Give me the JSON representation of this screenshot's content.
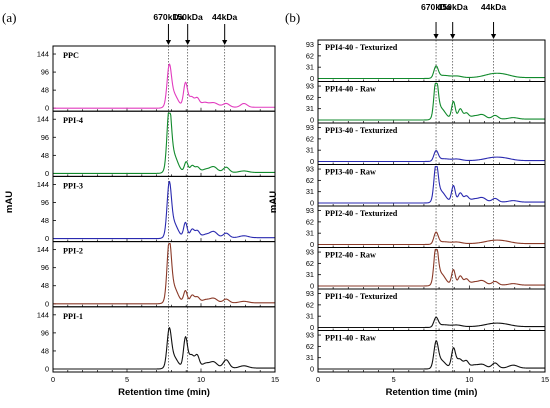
{
  "chart_data": [
    {
      "type": "line",
      "label": "(a)",
      "xlabel": "Retention time (min)",
      "ylabel": "mAU",
      "xlim": [
        0,
        15
      ],
      "xticks": [
        0,
        5,
        10,
        15
      ],
      "markers": [
        {
          "label": "670kDa",
          "x": 7.8
        },
        {
          "label": "150kDa",
          "x": 9.1
        },
        {
          "label": "44kDa",
          "x": 11.6
        }
      ],
      "panels": [
        {
          "name": "PPC",
          "color": "#e23cbf",
          "yticks": [
            0,
            48,
            96,
            144
          ],
          "ylim": [
            0,
            160
          ],
          "peaks": [
            [
              7.85,
              88,
              0.14
            ],
            [
              8.1,
              38,
              0.3
            ],
            [
              8.95,
              62,
              0.13
            ],
            [
              9.35,
              28,
              0.2
            ],
            [
              9.75,
              20,
              0.14
            ],
            [
              10.2,
              12,
              0.25
            ],
            [
              10.85,
              12,
              0.3
            ],
            [
              11.7,
              10,
              0.22
            ],
            [
              12.9,
              10,
              0.22
            ]
          ]
        },
        {
          "name": "PPI-4",
          "color": "#118a2c",
          "yticks": [
            0,
            48,
            96,
            144
          ],
          "ylim": [
            0,
            160
          ],
          "peaks": [
            [
              7.85,
              145,
              0.14
            ],
            [
              8.1,
              50,
              0.3
            ],
            [
              9.0,
              28,
              0.12
            ],
            [
              9.4,
              18,
              0.14
            ],
            [
              9.75,
              14,
              0.15
            ],
            [
              10.3,
              8,
              0.25
            ],
            [
              10.85,
              15,
              0.25
            ],
            [
              11.7,
              14,
              0.2
            ],
            [
              12.9,
              4,
              0.3
            ]
          ]
        },
        {
          "name": "PPI-3",
          "color": "#2a2ab0",
          "yticks": [
            0,
            48,
            96,
            144
          ],
          "ylim": [
            0,
            160
          ],
          "peaks": [
            [
              7.85,
              120,
              0.14
            ],
            [
              8.1,
              42,
              0.3
            ],
            [
              8.95,
              40,
              0.12
            ],
            [
              9.4,
              22,
              0.14
            ],
            [
              9.75,
              18,
              0.15
            ],
            [
              10.3,
              8,
              0.25
            ],
            [
              10.85,
              16,
              0.25
            ],
            [
              11.7,
              12,
              0.2
            ],
            [
              12.9,
              5,
              0.3
            ]
          ]
        },
        {
          "name": "PPI-2",
          "color": "#8a3a28",
          "yticks": [
            0,
            48,
            96,
            144
          ],
          "ylim": [
            0,
            160
          ],
          "peaks": [
            [
              7.85,
              138,
              0.14
            ],
            [
              8.1,
              45,
              0.3
            ],
            [
              8.95,
              32,
              0.12
            ],
            [
              9.4,
              20,
              0.14
            ],
            [
              9.75,
              15,
              0.15
            ],
            [
              10.3,
              8,
              0.25
            ],
            [
              10.85,
              12,
              0.25
            ],
            [
              11.7,
              10,
              0.2
            ],
            [
              12.9,
              4,
              0.3
            ]
          ]
        },
        {
          "name": "PPI-1",
          "color": "#111111",
          "yticks": [
            0,
            48,
            96,
            144
          ],
          "ylim": [
            0,
            160
          ],
          "peaks": [
            [
              7.85,
              85,
              0.14
            ],
            [
              8.1,
              32,
              0.3
            ],
            [
              8.95,
              78,
              0.13
            ],
            [
              9.35,
              35,
              0.2
            ],
            [
              9.75,
              30,
              0.14
            ],
            [
              10.3,
              12,
              0.25
            ],
            [
              10.85,
              16,
              0.25
            ],
            [
              11.7,
              22,
              0.2
            ],
            [
              12.9,
              6,
              0.3
            ]
          ]
        }
      ]
    },
    {
      "type": "line",
      "label": "(b)",
      "xlabel": "Retention time (min)",
      "ylabel": "mAU",
      "xlim": [
        0,
        15
      ],
      "xticks": [
        0,
        5,
        10,
        15
      ],
      "markers": [
        {
          "label": "670kDa",
          "x": 7.8
        },
        {
          "label": "150kDa",
          "x": 8.9
        },
        {
          "label": "44kDa",
          "x": 11.6
        }
      ],
      "panels": [
        {
          "name": "PPI4-40 - Texturized",
          "color": "#118a2c",
          "yticks": [
            0,
            31,
            62,
            93
          ],
          "ylim": [
            0,
            100
          ],
          "peaks": [
            [
              7.8,
              30,
              0.14
            ],
            [
              8.3,
              6,
              0.4
            ],
            [
              9.2,
              4,
              0.3
            ],
            [
              11.6,
              10,
              0.6
            ],
            [
              12.4,
              5,
              0.5
            ]
          ]
        },
        {
          "name": "PPI4-40 - Raw",
          "color": "#118a2c",
          "yticks": [
            0,
            31,
            62,
            93
          ],
          "ylim": [
            0,
            100
          ],
          "peaks": [
            [
              7.8,
              98,
              0.13
            ],
            [
              8.1,
              30,
              0.3
            ],
            [
              8.95,
              48,
              0.12
            ],
            [
              9.4,
              28,
              0.14
            ],
            [
              9.8,
              16,
              0.15
            ],
            [
              10.3,
              8,
              0.25
            ],
            [
              10.85,
              12,
              0.25
            ],
            [
              11.7,
              10,
              0.2
            ],
            [
              12.9,
              4,
              0.3
            ]
          ]
        },
        {
          "name": "PPI3-40 - Texturized",
          "color": "#2a2ab0",
          "yticks": [
            0,
            31,
            62,
            93
          ],
          "ylim": [
            0,
            100
          ],
          "peaks": [
            [
              7.8,
              26,
              0.14
            ],
            [
              8.3,
              5,
              0.4
            ],
            [
              9.2,
              4,
              0.3
            ],
            [
              11.6,
              8,
              0.6
            ],
            [
              12.4,
              4,
              0.5
            ]
          ]
        },
        {
          "name": "PPI3-40 - Raw",
          "color": "#2a2ab0",
          "yticks": [
            0,
            31,
            62,
            93
          ],
          "ylim": [
            0,
            100
          ],
          "peaks": [
            [
              7.8,
              92,
              0.13
            ],
            [
              8.1,
              30,
              0.3
            ],
            [
              8.95,
              45,
              0.12
            ],
            [
              9.4,
              25,
              0.14
            ],
            [
              9.8,
              16,
              0.15
            ],
            [
              10.3,
              8,
              0.25
            ],
            [
              10.85,
              12,
              0.25
            ],
            [
              11.7,
              10,
              0.2
            ],
            [
              12.9,
              4,
              0.3
            ]
          ]
        },
        {
          "name": "PPI2-40 - Texturized",
          "color": "#8a3a28",
          "yticks": [
            0,
            31,
            62,
            93
          ],
          "ylim": [
            0,
            100
          ],
          "peaks": [
            [
              7.8,
              30,
              0.14
            ],
            [
              8.3,
              5,
              0.4
            ],
            [
              9.2,
              4,
              0.3
            ],
            [
              11.6,
              8,
              0.6
            ],
            [
              12.4,
              4,
              0.5
            ]
          ]
        },
        {
          "name": "PPI2-40 - Raw",
          "color": "#8a3a28",
          "yticks": [
            0,
            31,
            62,
            93
          ],
          "ylim": [
            0,
            100
          ],
          "peaks": [
            [
              7.8,
              96,
              0.13
            ],
            [
              8.1,
              32,
              0.3
            ],
            [
              8.95,
              42,
              0.12
            ],
            [
              9.4,
              25,
              0.14
            ],
            [
              9.8,
              16,
              0.15
            ],
            [
              10.3,
              8,
              0.25
            ],
            [
              10.85,
              12,
              0.25
            ],
            [
              11.7,
              10,
              0.2
            ],
            [
              12.9,
              4,
              0.3
            ]
          ]
        },
        {
          "name": "PPI1-40 - Texturized",
          "color": "#111111",
          "yticks": [
            0,
            31,
            62,
            93
          ],
          "ylim": [
            0,
            100
          ],
          "peaks": [
            [
              7.8,
              24,
              0.14
            ],
            [
              8.3,
              5,
              0.4
            ],
            [
              9.2,
              4,
              0.3
            ],
            [
              11.6,
              8,
              0.6
            ],
            [
              12.4,
              4,
              0.5
            ]
          ]
        },
        {
          "name": "PPI1-40 - Raw",
          "color": "#111111",
          "yticks": [
            0,
            31,
            62,
            93
          ],
          "ylim": [
            0,
            100
          ],
          "peaks": [
            [
              7.8,
              62,
              0.14
            ],
            [
              8.1,
              22,
              0.3
            ],
            [
              8.95,
              52,
              0.13
            ],
            [
              9.35,
              25,
              0.2
            ],
            [
              9.8,
              18,
              0.15
            ],
            [
              10.3,
              8,
              0.25
            ],
            [
              10.85,
              10,
              0.25
            ],
            [
              11.7,
              14,
              0.2
            ],
            [
              12.9,
              8,
              0.3
            ]
          ]
        }
      ]
    }
  ]
}
